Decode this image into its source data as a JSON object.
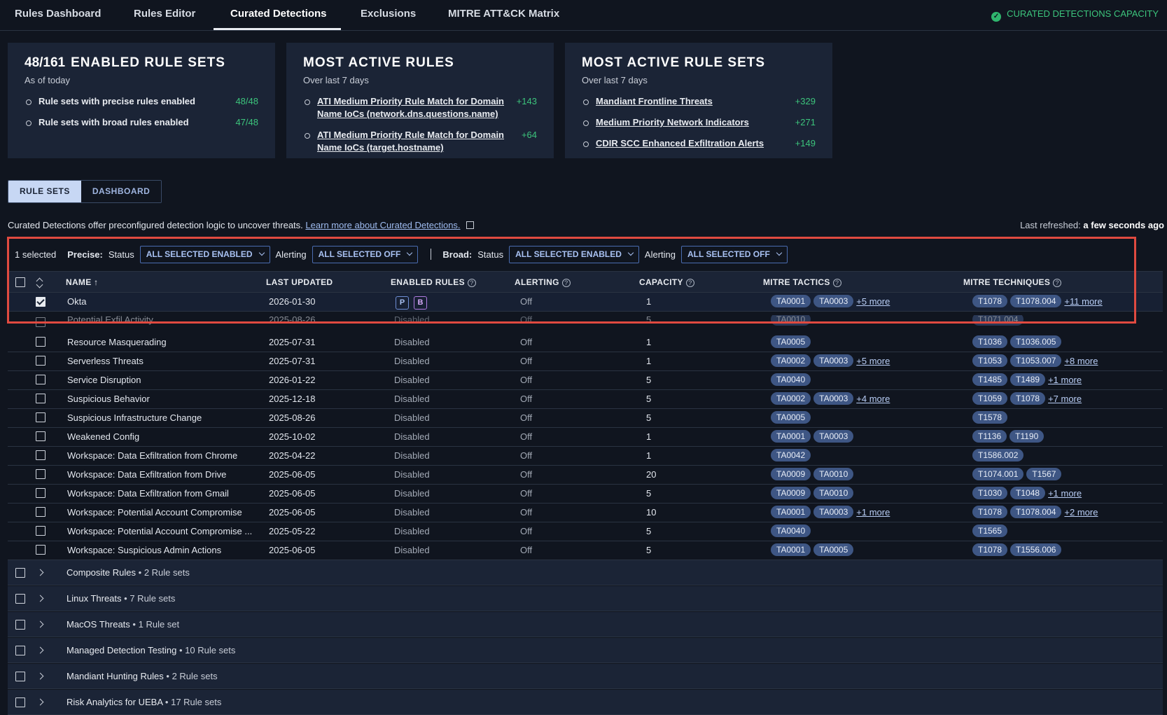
{
  "nav": {
    "tabs": [
      "Rules Dashboard",
      "Rules Editor",
      "Curated Detections",
      "Exclusions",
      "MITRE ATT&CK Matrix"
    ],
    "active_tab": "Curated Detections",
    "capacity_label": "CURATED DETECTIONS CAPACITY"
  },
  "cards": {
    "enabled": {
      "count": "48/161",
      "title": "ENABLED RULE SETS",
      "subtitle": "As of today",
      "items": [
        {
          "label": "Rule sets with precise rules enabled",
          "value": "48/48"
        },
        {
          "label": "Rule sets with broad rules enabled",
          "value": "47/48"
        }
      ]
    },
    "active_rules": {
      "title": "MOST ACTIVE RULES",
      "subtitle": "Over last 7 days",
      "items": [
        {
          "label": "ATI Medium Priority Rule Match for Domain Name IoCs (network.dns.questions.name)",
          "value": "+143"
        },
        {
          "label": "ATI Medium Priority Rule Match for Domain Name IoCs (target.hostname)",
          "value": "+64"
        }
      ]
    },
    "active_rule_sets": {
      "title": "MOST ACTIVE RULE SETS",
      "subtitle": "Over last 7 days",
      "items": [
        {
          "label": "Mandiant Frontline Threats",
          "value": "+329"
        },
        {
          "label": "Medium Priority Network Indicators",
          "value": "+271"
        },
        {
          "label": "CDIR SCC Enhanced Exfiltration Alerts",
          "value": "+149"
        }
      ]
    }
  },
  "view_toggle": {
    "rule_sets": "RULE SETS",
    "dashboard": "DASHBOARD",
    "selected": "RULE SETS"
  },
  "description": {
    "text": "Curated Detections offer preconfigured detection logic to uncover threats.",
    "link": "Learn more about Curated Detections.",
    "refreshed_label": "Last refreshed:",
    "refreshed_value": "a few seconds ago"
  },
  "filters": {
    "selected_count": "1 selected",
    "precise_label": "Precise:",
    "broad_label": "Broad:",
    "status_label": "Status",
    "alerting_label": "Alerting",
    "precise_status": "ALL SELECTED ENABLED",
    "precise_alerting": "ALL SELECTED OFF",
    "broad_status": "ALL SELECTED ENABLED",
    "broad_alerting": "ALL SELECTED OFF"
  },
  "table": {
    "headers": {
      "name": "NAME ↑",
      "last_updated": "LAST UPDATED",
      "enabled_rules": "ENABLED RULES",
      "alerting": "ALERTING",
      "capacity": "CAPACITY",
      "mitre_tactics": "MITRE TACTICS",
      "mitre_techniques": "MITRE TECHNIQUES"
    },
    "selected_row": {
      "name": "Okta",
      "updated": "2026-01-30",
      "rules_p": "P",
      "rules_b": "B",
      "alerting": "Off",
      "capacity": "1",
      "tactics": [
        "TA0001",
        "TA0003"
      ],
      "tactics_more": "+5 more",
      "techniques": [
        "T1078",
        "T1078.004"
      ],
      "techniques_more": "+11 more"
    },
    "partial_row": {
      "name": "Potential Exfil Activity",
      "updated": "2025-08-26",
      "rules": "Disabled",
      "alerting": "Off",
      "capacity": "5",
      "tactics": [
        "TA0010"
      ],
      "techniques": [
        "T1071.004"
      ]
    },
    "rows": [
      {
        "name": "Resource Masquerading",
        "updated": "2025-07-31",
        "rules": "Disabled",
        "alerting": "Off",
        "capacity": "1",
        "tactics": [
          "TA0005"
        ],
        "tactics_more": "",
        "techniques": [
          "T1036",
          "T1036.005"
        ],
        "techniques_more": ""
      },
      {
        "name": "Serverless Threats",
        "updated": "2025-07-31",
        "rules": "Disabled",
        "alerting": "Off",
        "capacity": "1",
        "tactics": [
          "TA0002",
          "TA0003"
        ],
        "tactics_more": "+5 more",
        "techniques": [
          "T1053",
          "T1053.007"
        ],
        "techniques_more": "+8 more"
      },
      {
        "name": "Service Disruption",
        "updated": "2026-01-22",
        "rules": "Disabled",
        "alerting": "Off",
        "capacity": "5",
        "tactics": [
          "TA0040"
        ],
        "tactics_more": "",
        "techniques": [
          "T1485",
          "T1489"
        ],
        "techniques_more": "+1 more"
      },
      {
        "name": "Suspicious Behavior",
        "updated": "2025-12-18",
        "rules": "Disabled",
        "alerting": "Off",
        "capacity": "5",
        "tactics": [
          "TA0002",
          "TA0003"
        ],
        "tactics_more": "+4 more",
        "techniques": [
          "T1059",
          "T1078"
        ],
        "techniques_more": "+7 more"
      },
      {
        "name": "Suspicious Infrastructure Change",
        "updated": "2025-08-26",
        "rules": "Disabled",
        "alerting": "Off",
        "capacity": "5",
        "tactics": [
          "TA0005"
        ],
        "tactics_more": "",
        "techniques": [
          "T1578"
        ],
        "techniques_more": ""
      },
      {
        "name": "Weakened Config",
        "updated": "2025-10-02",
        "rules": "Disabled",
        "alerting": "Off",
        "capacity": "1",
        "tactics": [
          "TA0001",
          "TA0003"
        ],
        "tactics_more": "",
        "techniques": [
          "T1136",
          "T1190"
        ],
        "techniques_more": ""
      },
      {
        "name": "Workspace: Data Exfiltration from Chrome",
        "updated": "2025-04-22",
        "rules": "Disabled",
        "alerting": "Off",
        "capacity": "1",
        "tactics": [
          "TA0042"
        ],
        "tactics_more": "",
        "techniques": [
          "T1586.002"
        ],
        "techniques_more": ""
      },
      {
        "name": "Workspace: Data Exfiltration from Drive",
        "updated": "2025-06-05",
        "rules": "Disabled",
        "alerting": "Off",
        "capacity": "20",
        "tactics": [
          "TA0009",
          "TA0010"
        ],
        "tactics_more": "",
        "techniques": [
          "T1074.001",
          "T1567"
        ],
        "techniques_more": ""
      },
      {
        "name": "Workspace: Data Exfiltration from Gmail",
        "updated": "2025-06-05",
        "rules": "Disabled",
        "alerting": "Off",
        "capacity": "5",
        "tactics": [
          "TA0009",
          "TA0010"
        ],
        "tactics_more": "",
        "techniques": [
          "T1030",
          "T1048"
        ],
        "techniques_more": "+1 more"
      },
      {
        "name": "Workspace: Potential Account Compromise",
        "updated": "2025-06-05",
        "rules": "Disabled",
        "alerting": "Off",
        "capacity": "10",
        "tactics": [
          "TA0001",
          "TA0003"
        ],
        "tactics_more": "+1 more",
        "techniques": [
          "T1078",
          "T1078.004"
        ],
        "techniques_more": "+2 more"
      },
      {
        "name": "Workspace: Potential Account Compromise ...",
        "updated": "2025-05-22",
        "rules": "Disabled",
        "alerting": "Off",
        "capacity": "5",
        "tactics": [
          "TA0040"
        ],
        "tactics_more": "",
        "techniques": [
          "T1565"
        ],
        "techniques_more": ""
      },
      {
        "name": "Workspace: Suspicious Admin Actions",
        "updated": "2025-06-05",
        "rules": "Disabled",
        "alerting": "Off",
        "capacity": "5",
        "tactics": [
          "TA0001",
          "TA0005"
        ],
        "tactics_more": "",
        "techniques": [
          "T1078",
          "T1556.006"
        ],
        "techniques_more": ""
      }
    ],
    "groups": [
      {
        "name": "Composite Rules",
        "count": "2 Rule sets"
      },
      {
        "name": "Linux Threats",
        "count": "7 Rule sets"
      },
      {
        "name": "MacOS Threats",
        "count": "1 Rule set"
      },
      {
        "name": "Managed Detection Testing",
        "count": "10 Rule sets"
      },
      {
        "name": "Mandiant Hunting Rules",
        "count": "2 Rule sets"
      },
      {
        "name": "Risk Analytics for UEBA",
        "count": "17 Rule sets"
      }
    ],
    "group_separator": "•"
  }
}
